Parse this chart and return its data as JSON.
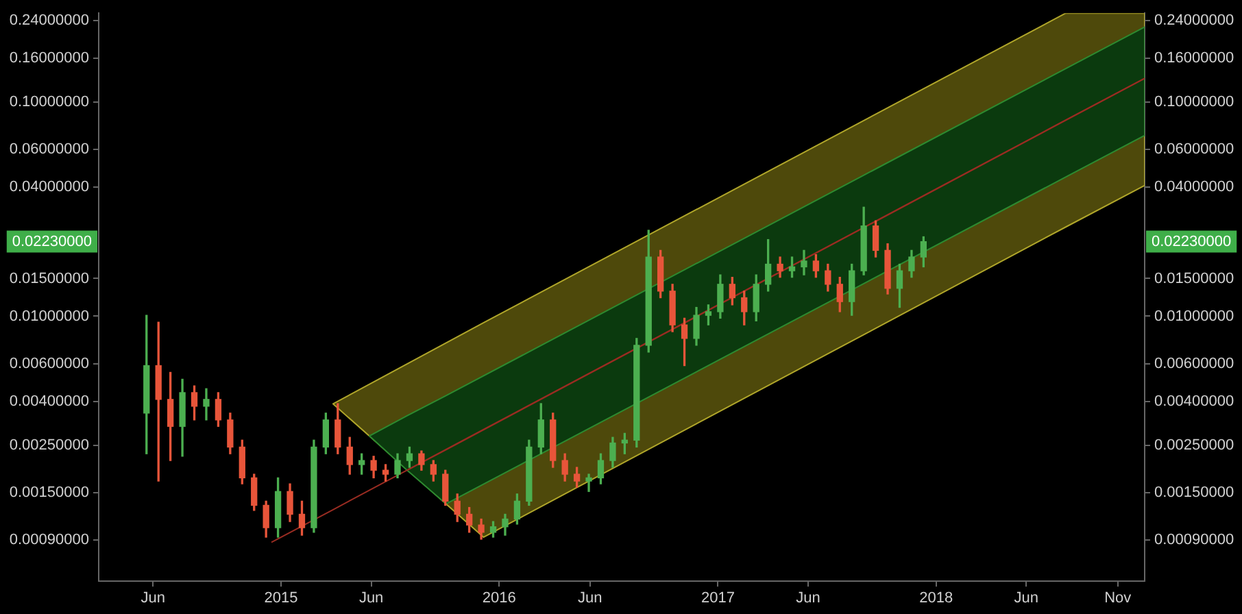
{
  "chart_data": {
    "type": "candlestick",
    "x": [
      "2014-05-21",
      "2014-06-10",
      "2014-06-30",
      "2014-07-20",
      "2014-08-09",
      "2014-08-29",
      "2014-09-18",
      "2014-10-08",
      "2014-10-28",
      "2014-11-17",
      "2014-12-07",
      "2014-12-27",
      "2015-01-16",
      "2015-02-05",
      "2015-02-25",
      "2015-03-17",
      "2015-04-06",
      "2015-04-26",
      "2015-05-16",
      "2015-06-05",
      "2015-06-25",
      "2015-07-15",
      "2015-08-04",
      "2015-08-24",
      "2015-09-13",
      "2015-10-03",
      "2015-10-23",
      "2015-11-12",
      "2015-12-02",
      "2015-12-22",
      "2016-01-11",
      "2016-01-31",
      "2016-02-20",
      "2016-03-11",
      "2016-03-31",
      "2016-04-20",
      "2016-05-10",
      "2016-05-30",
      "2016-06-19",
      "2016-07-09",
      "2016-07-29",
      "2016-08-18",
      "2016-09-07",
      "2016-09-27",
      "2016-10-17",
      "2016-11-06",
      "2016-11-26",
      "2016-12-16",
      "2017-01-05",
      "2017-01-25",
      "2017-02-14",
      "2017-03-06",
      "2017-03-26",
      "2017-04-15",
      "2017-05-05",
      "2017-05-25",
      "2017-06-14",
      "2017-07-04",
      "2017-07-24",
      "2017-08-13",
      "2017-09-02",
      "2017-09-22",
      "2017-10-12",
      "2017-11-01",
      "2017-11-21",
      "2017-12-11"
    ],
    "ohlc": [
      [
        0.00353,
        0.0101,
        0.00228,
        0.00588
      ],
      [
        0.00588,
        0.00938,
        0.0017,
        0.00409
      ],
      [
        0.00409,
        0.00547,
        0.00212,
        0.00306
      ],
      [
        0.00306,
        0.00508,
        0.00222,
        0.0044
      ],
      [
        0.0044,
        0.00473,
        0.00328,
        0.0038
      ],
      [
        0.0038,
        0.00459,
        0.00328,
        0.00409
      ],
      [
        0.00409,
        0.0044,
        0.00306,
        0.00328
      ],
      [
        0.00328,
        0.00353,
        0.00228,
        0.00245
      ],
      [
        0.00245,
        0.00264,
        0.00165,
        0.00176
      ],
      [
        0.00176,
        0.00183,
        0.00124,
        0.00131
      ],
      [
        0.00131,
        0.00137,
        0.00093,
        0.00103
      ],
      [
        0.00103,
        0.00176,
        0.00093,
        0.00152
      ],
      [
        0.00152,
        0.00165,
        0.0011,
        0.00119
      ],
      [
        0.00119,
        0.00137,
        0.00095,
        0.00103
      ],
      [
        0.00103,
        0.00264,
        0.00098,
        0.00245
      ],
      [
        0.00245,
        0.00353,
        0.00228,
        0.00328
      ],
      [
        0.00328,
        0.00391,
        0.00228,
        0.00245
      ],
      [
        0.00245,
        0.00272,
        0.00183,
        0.00203
      ],
      [
        0.00203,
        0.00228,
        0.00183,
        0.00212
      ],
      [
        0.00212,
        0.00222,
        0.00176,
        0.00191
      ],
      [
        0.00191,
        0.00203,
        0.0017,
        0.00183
      ],
      [
        0.00183,
        0.00228,
        0.00176,
        0.00212
      ],
      [
        0.00212,
        0.00245,
        0.00197,
        0.00228
      ],
      [
        0.00228,
        0.00235,
        0.00191,
        0.00203
      ],
      [
        0.00203,
        0.00212,
        0.0017,
        0.00183
      ],
      [
        0.00183,
        0.00191,
        0.00131,
        0.00137
      ],
      [
        0.00137,
        0.00148,
        0.0011,
        0.00119
      ],
      [
        0.00119,
        0.00128,
        0.00098,
        0.00106
      ],
      [
        0.00106,
        0.00113,
        0.00091,
        0.00098
      ],
      [
        0.00098,
        0.0011,
        0.00093,
        0.00104
      ],
      [
        0.00104,
        0.00119,
        0.00095,
        0.00113
      ],
      [
        0.00113,
        0.00148,
        0.00107,
        0.00137
      ],
      [
        0.00137,
        0.00264,
        0.00131,
        0.00245
      ],
      [
        0.00245,
        0.00391,
        0.00228,
        0.00328
      ],
      [
        0.00328,
        0.00353,
        0.00197,
        0.00212
      ],
      [
        0.00212,
        0.00228,
        0.0017,
        0.00183
      ],
      [
        0.00183,
        0.00197,
        0.00159,
        0.0017
      ],
      [
        0.0017,
        0.00183,
        0.00152,
        0.00176
      ],
      [
        0.00176,
        0.00228,
        0.00165,
        0.00212
      ],
      [
        0.00212,
        0.00272,
        0.00197,
        0.00256
      ],
      [
        0.00256,
        0.00284,
        0.00228,
        0.00264
      ],
      [
        0.00264,
        0.00788,
        0.00245,
        0.00732
      ],
      [
        0.00732,
        0.0252,
        0.0068,
        0.0189
      ],
      [
        0.0189,
        0.0203,
        0.0122,
        0.0131
      ],
      [
        0.0131,
        0.0141,
        0.00847,
        0.00911
      ],
      [
        0.00911,
        0.00979,
        0.00588,
        0.00788
      ],
      [
        0.00788,
        0.011,
        0.00732,
        0.0101
      ],
      [
        0.0101,
        0.0113,
        0.00911,
        0.0105
      ],
      [
        0.0105,
        0.0156,
        0.00979,
        0.0141
      ],
      [
        0.0141,
        0.0152,
        0.0113,
        0.0122
      ],
      [
        0.0122,
        0.0131,
        0.00911,
        0.0105
      ],
      [
        0.0105,
        0.0156,
        0.00951,
        0.0141
      ],
      [
        0.0141,
        0.0228,
        0.0131,
        0.0175
      ],
      [
        0.0175,
        0.0189,
        0.0152,
        0.0163
      ],
      [
        0.0163,
        0.0189,
        0.0152,
        0.017
      ],
      [
        0.017,
        0.0203,
        0.0156,
        0.0181
      ],
      [
        0.0181,
        0.0194,
        0.0152,
        0.0163
      ],
      [
        0.0163,
        0.0175,
        0.0131,
        0.0141
      ],
      [
        0.0141,
        0.0152,
        0.0105,
        0.0117
      ],
      [
        0.0117,
        0.0175,
        0.0101,
        0.0163
      ],
      [
        0.0163,
        0.0323,
        0.0156,
        0.0264
      ],
      [
        0.0264,
        0.0279,
        0.0189,
        0.0203
      ],
      [
        0.0203,
        0.0218,
        0.0127,
        0.0135
      ],
      [
        0.0135,
        0.0175,
        0.011,
        0.0163
      ],
      [
        0.0163,
        0.0203,
        0.0152,
        0.0189
      ],
      [
        0.0189,
        0.0235,
        0.017,
        0.0223
      ]
    ],
    "colors": [
      "#4caf50",
      "#e8553a",
      "#e8553a",
      "#4caf50",
      "#e8553a",
      "#4caf50",
      "#e8553a",
      "#e8553a",
      "#e8553a",
      "#e8553a",
      "#e8553a",
      "#4caf50",
      "#e8553a",
      "#e8553a",
      "#4caf50",
      "#4caf50",
      "#e8553a",
      "#e8553a",
      "#4caf50",
      "#e8553a",
      "#e8553a",
      "#4caf50",
      "#4caf50",
      "#e8553a",
      "#e8553a",
      "#e8553a",
      "#e8553a",
      "#e8553a",
      "#e8553a",
      "#4caf50",
      "#4caf50",
      "#4caf50",
      "#4caf50",
      "#4caf50",
      "#e8553a",
      "#e8553a",
      "#e8553a",
      "#4caf50",
      "#4caf50",
      "#4caf50",
      "#4caf50",
      "#4caf50",
      "#4caf50",
      "#e8553a",
      "#e8553a",
      "#e8553a",
      "#4caf50",
      "#4caf50",
      "#4caf50",
      "#e8553a",
      "#e8553a",
      "#4caf50",
      "#4caf50",
      "#e8553a",
      "#4caf50",
      "#4caf50",
      "#e8553a",
      "#e8553a",
      "#e8553a",
      "#4caf50",
      "#4caf50",
      "#e8553a",
      "#e8553a",
      "#4caf50",
      "#4caf50",
      "#4caf50"
    ],
    "series": [
      {
        "type": "line",
        "color": "#9a2c22",
        "x": [
          "2014-12-16",
          "2015-03-29",
          "2015-12-06",
          "2018-08-06",
          "2018-12-16"
        ],
        "values": [
          0.00088,
          0.00125,
          0.00296,
          0.0824,
          0.129
        ],
        "lower": [
          null,
          0.0039,
          0.00093,
          0.0261,
          0.0408
        ],
        "upper": [
          null,
          0.0039,
          0.00933,
          0.26,
          0.26
        ]
      },
      {
        "type": "line",
        "color": "#9a2c22",
        "x": [
          "2015-05-29",
          "2015-07-31",
          "2015-10-04",
          "2018-12-16"
        ],
        "values": [
          null,
          0.00191,
          0.00238,
          0.129
        ],
        "lower": [
          0.00276,
          0.00191,
          0.00133,
          0.0699
        ],
        "upper": [
          0.00276,
          0.00343,
          0.00426,
          0.224
        ]
      }
    ],
    "xlim": [
      "2014-03-02",
      "2018-12-16"
    ],
    "xticks": [
      {
        "value": "2014-06-01",
        "label": "Jun"
      },
      {
        "value": "2015-01-01",
        "label": "2015"
      },
      {
        "value": "2015-06-01",
        "label": "Jun"
      },
      {
        "value": "2016-01-01",
        "label": "2016"
      },
      {
        "value": "2016-06-01",
        "label": "Jun"
      },
      {
        "value": "2017-01-01",
        "label": "2017"
      },
      {
        "value": "2017-06-01",
        "label": "Jun"
      },
      {
        "value": "2018-01-01",
        "label": "2018"
      },
      {
        "value": "2018-06-01",
        "label": "Jun"
      },
      {
        "value": "2018-11-01",
        "label": "Nov"
      }
    ],
    "log": "y",
    "ylim": [
      0.00058,
      0.26
    ],
    "yticks": [
      {
        "value": 0.0009,
        "label": "0.00090000"
      },
      {
        "value": 0.0015,
        "label": "0.00150000"
      },
      {
        "value": 0.0025,
        "label": "0.00250000"
      },
      {
        "value": 0.004,
        "label": "0.00400000"
      },
      {
        "value": 0.006,
        "label": "0.00600000"
      },
      {
        "value": 0.01,
        "label": "0.01000000"
      },
      {
        "value": 0.015,
        "label": "0.01500000"
      },
      {
        "value": 0.04,
        "label": "0.04000000"
      },
      {
        "value": 0.06,
        "label": "0.06000000"
      },
      {
        "value": 0.1,
        "label": "0.10000000"
      },
      {
        "value": 0.16,
        "label": "0.16000000"
      },
      {
        "value": 0.24,
        "label": "0.24000000"
      }
    ],
    "annotations": [
      "0.02230000",
      "0.02230000"
    ],
    "marker": "none",
    "line_style": "solid"
  }
}
